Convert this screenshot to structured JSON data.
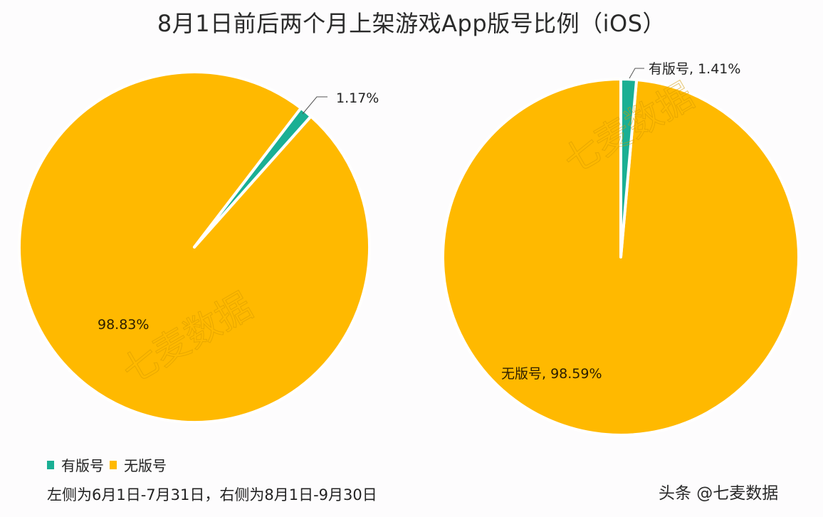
{
  "title": "8月1日前后两个月上架游戏App版号比例（iOS）",
  "colors": {
    "licensed": "#1aaf94",
    "unlicensed": "#ffb900",
    "background": "#fdfcfd"
  },
  "legend": {
    "items": [
      {
        "label": "有版号",
        "color": "#1aaf94"
      },
      {
        "label": "无版号",
        "color": "#ffb900"
      }
    ]
  },
  "footer": {
    "note": "左侧为6月1日-7月31日，右侧为8月1日-9月30日",
    "credit": "头条 @七麦数据"
  },
  "watermark": "七麦数据",
  "charts": {
    "left": {
      "label_licensed": "1.17%",
      "label_unlicensed": "98.83%"
    },
    "right": {
      "label_licensed": "有版号, 1.41%",
      "label_unlicensed": "无版号, 98.59%"
    }
  },
  "chart_data": [
    {
      "type": "pie",
      "title": "8月1日前后两个月上架游戏App版号比例（iOS）",
      "subtitle": "左侧为6月1日-7月31日",
      "period": "6月1日-7月31日",
      "categories": [
        "有版号",
        "无版号"
      ],
      "values": [
        1.17,
        98.83
      ],
      "unit": "%",
      "colors": [
        "#1aaf94",
        "#ffb900"
      ],
      "legend_position": "bottom-left"
    },
    {
      "type": "pie",
      "title": "8月1日前后两个月上架游戏App版号比例（iOS）",
      "subtitle": "右侧为8月1日-9月30日",
      "period": "8月1日-9月30日",
      "categories": [
        "有版号",
        "无版号"
      ],
      "values": [
        1.41,
        98.59
      ],
      "unit": "%",
      "colors": [
        "#1aaf94",
        "#ffb900"
      ],
      "legend_position": "bottom-left"
    }
  ]
}
